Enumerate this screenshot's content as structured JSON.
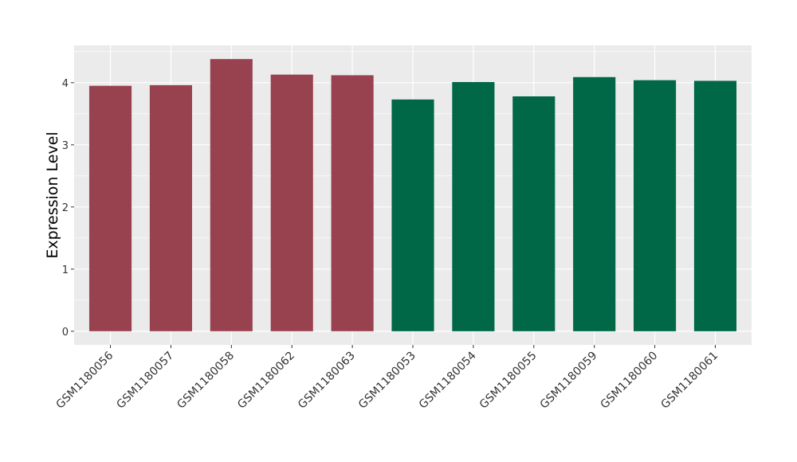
{
  "chart_data": {
    "type": "bar",
    "y_label": "Expression Level",
    "categories": [
      "GSM1180056",
      "GSM1180057",
      "GSM1180058",
      "GSM1180062",
      "GSM1180063",
      "GSM1180053",
      "GSM1180054",
      "GSM1180055",
      "GSM1180059",
      "GSM1180060",
      "GSM1180061"
    ],
    "values": [
      3.95,
      3.96,
      4.38,
      4.13,
      4.12,
      3.73,
      4.01,
      3.78,
      4.09,
      4.04,
      4.03
    ],
    "colors": [
      "#99424f",
      "#99424f",
      "#99424f",
      "#99424f",
      "#99424f",
      "#006747",
      "#006747",
      "#006747",
      "#006747",
      "#006747",
      "#006747"
    ],
    "ylim": [
      -0.22,
      4.6
    ],
    "yticks": [
      0,
      1,
      2,
      3,
      4
    ],
    "grid": true
  }
}
